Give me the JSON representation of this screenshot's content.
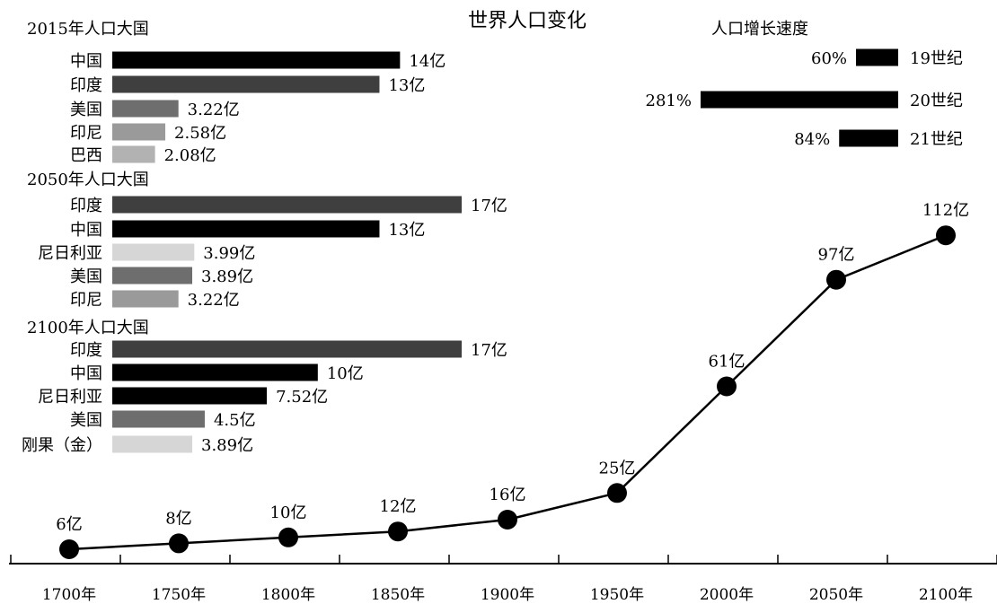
{
  "title": "世界人口变化",
  "colors": {
    "black": "#000000",
    "dark": "#3f3f3f",
    "mid": "#6e6e6e",
    "light": "#9a9a9a",
    "lighter": "#b2b2b2",
    "pale": "#d6d6d6"
  },
  "chart_data": [
    {
      "type": "line",
      "title": "世界人口变化",
      "xlabel": "",
      "ylabel": "",
      "x": [
        "1700年",
        "1750年",
        "1800年",
        "1850年",
        "1900年",
        "1950年",
        "2000年",
        "2050年",
        "2100年"
      ],
      "series": [
        {
          "values": [
            6,
            8,
            10,
            12,
            16,
            25,
            61,
            97,
            112
          ],
          "labels": [
            "6亿",
            "8亿",
            "10亿",
            "12亿",
            "16亿",
            "25亿",
            "61亿",
            "97亿",
            "112亿"
          ]
        }
      ],
      "unit": "亿",
      "grid": false
    },
    {
      "type": "bar",
      "orientation": "horizontal",
      "title": "2015年人口大国",
      "categories": [
        "中国",
        "印度",
        "美国",
        "印尼",
        "巴西"
      ],
      "values": [
        14,
        13,
        3.22,
        2.58,
        2.08
      ],
      "labels": [
        "14亿",
        "13亿",
        "3.22亿",
        "2.58亿",
        "2.08亿"
      ],
      "colors": [
        "#000000",
        "#3f3f3f",
        "#6e6e6e",
        "#9a9a9a",
        "#b2b2b2"
      ]
    },
    {
      "type": "bar",
      "orientation": "horizontal",
      "title": "2050年人口大国",
      "categories": [
        "印度",
        "中国",
        "尼日利亚",
        "美国",
        "印尼"
      ],
      "values": [
        17,
        13,
        3.99,
        3.89,
        3.22
      ],
      "labels": [
        "17亿",
        "13亿",
        "3.99亿",
        "3.89亿",
        "3.22亿"
      ],
      "colors": [
        "#3f3f3f",
        "#000000",
        "#d6d6d6",
        "#6e6e6e",
        "#9a9a9a"
      ]
    },
    {
      "type": "bar",
      "orientation": "horizontal",
      "title": "2100年人口大国",
      "categories": [
        "印度",
        "中国",
        "尼日利亚",
        "美国",
        "刚果（金）"
      ],
      "values": [
        17,
        10,
        7.52,
        4.5,
        3.89
      ],
      "labels": [
        "17亿",
        "10亿",
        "7.52亿",
        "4.5亿",
        "3.89亿"
      ],
      "colors": [
        "#3f3f3f",
        "#000000",
        "#000000",
        "#6e6e6e",
        "#d6d6d6"
      ]
    },
    {
      "type": "bar",
      "orientation": "horizontal",
      "title": "人口增长速度",
      "categories": [
        "19世纪",
        "20世纪",
        "21世纪"
      ],
      "values": [
        60,
        281,
        84
      ],
      "labels": [
        "60%",
        "281%",
        "84%"
      ],
      "colors": [
        "#000000",
        "#000000",
        "#000000"
      ]
    }
  ]
}
